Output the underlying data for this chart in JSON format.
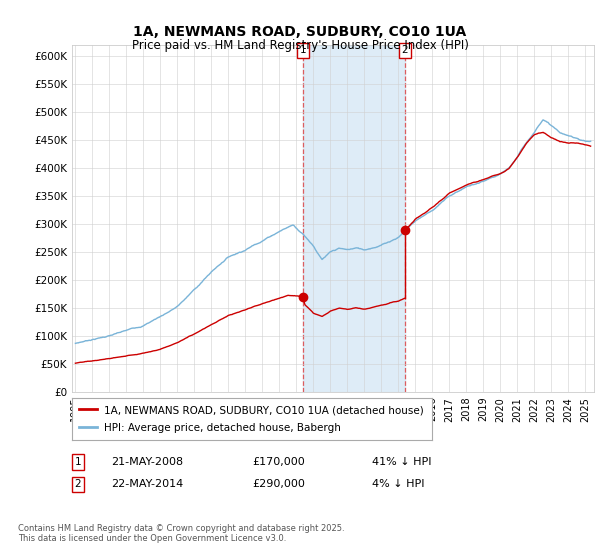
{
  "title": "1A, NEWMANS ROAD, SUDBURY, CO10 1UA",
  "subtitle": "Price paid vs. HM Land Registry's House Price Index (HPI)",
  "ylabel_ticks": [
    "£0",
    "£50K",
    "£100K",
    "£150K",
    "£200K",
    "£250K",
    "£300K",
    "£350K",
    "£400K",
    "£450K",
    "£500K",
    "£550K",
    "£600K"
  ],
  "ytick_values": [
    0,
    50000,
    100000,
    150000,
    200000,
    250000,
    300000,
    350000,
    400000,
    450000,
    500000,
    550000,
    600000
  ],
  "ylim": [
    0,
    620000
  ],
  "hpi_color": "#7ab4d8",
  "price_color": "#cc0000",
  "shade_color": "#d6e8f5",
  "vline_color": "#dd4444",
  "sale1_date": 2008.38,
  "sale1_price": 170000,
  "sale2_date": 2014.38,
  "sale2_price": 290000,
  "legend_price_label": "1A, NEWMANS ROAD, SUDBURY, CO10 1UA (detached house)",
  "legend_hpi_label": "HPI: Average price, detached house, Babergh",
  "footer": "Contains HM Land Registry data © Crown copyright and database right 2025.\nThis data is licensed under the Open Government Licence v3.0."
}
